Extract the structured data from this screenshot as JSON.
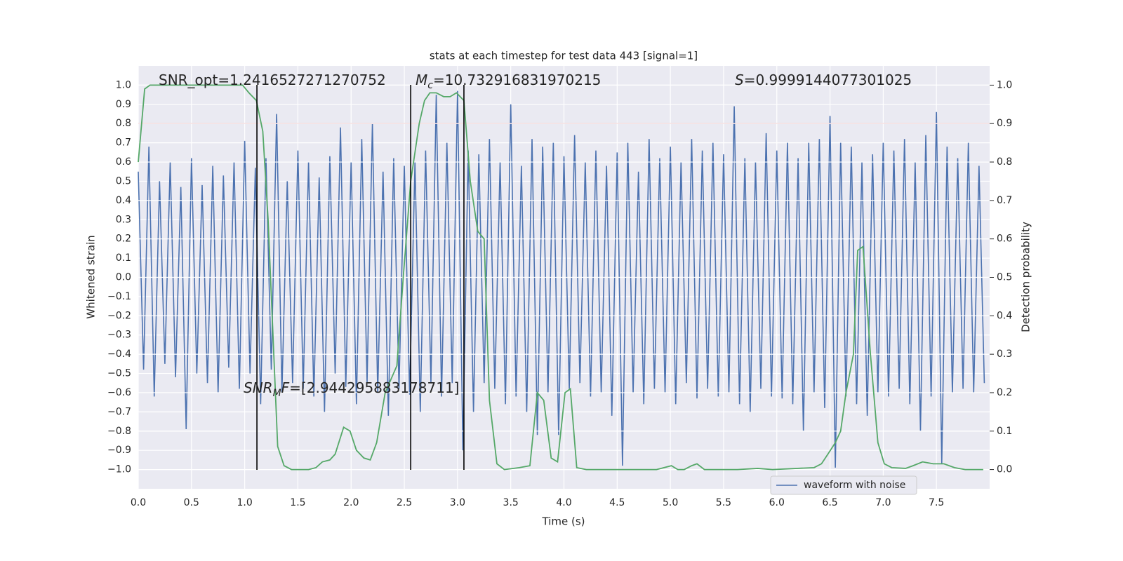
{
  "chart_data": {
    "type": "line",
    "title": "stats at each timestep for test data 443 [signal=1]",
    "x_label": "Time (s)",
    "y_label": "Whitened strain",
    "y2_label": "Detection probability",
    "xlim": [
      0,
      8
    ],
    "ylim": [
      -1.1,
      1.1
    ],
    "y2lim": [
      -0.05,
      1.05
    ],
    "grid": true,
    "legend": "lower right",
    "xticks": [
      {
        "value": 0,
        "label": "0.0"
      },
      {
        "value": 0.5,
        "label": "0.5"
      },
      {
        "value": 1,
        "label": "1.0"
      },
      {
        "value": 1.5,
        "label": "1.5"
      },
      {
        "value": 2,
        "label": "2.0"
      },
      {
        "value": 2.5,
        "label": "2.5"
      },
      {
        "value": 3,
        "label": "3.0"
      },
      {
        "value": 3.5,
        "label": "3.5"
      },
      {
        "value": 4,
        "label": "4.0"
      },
      {
        "value": 4.5,
        "label": "4.5"
      },
      {
        "value": 5,
        "label": "5.0"
      },
      {
        "value": 5.5,
        "label": "5.5"
      },
      {
        "value": 6,
        "label": "6.0"
      },
      {
        "value": 6.5,
        "label": "6.5"
      },
      {
        "value": 7,
        "label": "7.0"
      },
      {
        "value": 7.5,
        "label": "7.5"
      }
    ],
    "yticks": [
      {
        "value": -1,
        "label": "−1.0"
      },
      {
        "value": -0.9,
        "label": "−0.9"
      },
      {
        "value": -0.8,
        "label": "−0.8"
      },
      {
        "value": -0.7,
        "label": "−0.7"
      },
      {
        "value": -0.6,
        "label": "−0.6"
      },
      {
        "value": -0.5,
        "label": "−0.5"
      },
      {
        "value": -0.4,
        "label": "−0.4"
      },
      {
        "value": -0.3,
        "label": "−0.3"
      },
      {
        "value": -0.2,
        "label": "−0.2"
      },
      {
        "value": -0.1,
        "label": "−0.1"
      },
      {
        "value": 0,
        "label": "0.0"
      },
      {
        "value": 0.1,
        "label": "0.1"
      },
      {
        "value": 0.2,
        "label": "0.2"
      },
      {
        "value": 0.3,
        "label": "0.3"
      },
      {
        "value": 0.4,
        "label": "0.4"
      },
      {
        "value": 0.5,
        "label": "0.5"
      },
      {
        "value": 0.6,
        "label": "0.6"
      },
      {
        "value": 0.7,
        "label": "0.7"
      },
      {
        "value": 0.8,
        "label": "0.8"
      },
      {
        "value": 0.9,
        "label": "0.9"
      },
      {
        "value": 1,
        "label": "1.0"
      }
    ],
    "y2ticks": [
      {
        "value": 0,
        "label": "0.0"
      },
      {
        "value": 0.1,
        "label": "0.1"
      },
      {
        "value": 0.2,
        "label": "0.2"
      },
      {
        "value": 0.3,
        "label": "0.3"
      },
      {
        "value": 0.4,
        "label": "0.4"
      },
      {
        "value": 0.5,
        "label": "0.5"
      },
      {
        "value": 0.6,
        "label": "0.6"
      },
      {
        "value": 0.7,
        "label": "0.7"
      },
      {
        "value": 0.8,
        "label": "0.8"
      },
      {
        "value": 0.9,
        "label": "0.9"
      },
      {
        "value": 1,
        "label": "1.0"
      }
    ],
    "series": [
      {
        "name": "waveform with noise",
        "color": "#4c72b0",
        "x": [
          0,
          0.05,
          0.1,
          0.15,
          0.2,
          0.25,
          0.3,
          0.35,
          0.4,
          0.45,
          0.5,
          0.55,
          0.6,
          0.65,
          0.7,
          0.75,
          0.8,
          0.85,
          0.9,
          0.95,
          1,
          1.05,
          1.1,
          1.15,
          1.2,
          1.25,
          1.3,
          1.35,
          1.4,
          1.45,
          1.5,
          1.55,
          1.6,
          1.65,
          1.7,
          1.75,
          1.8,
          1.85,
          1.9,
          1.95,
          2,
          2.05,
          2.1,
          2.15,
          2.2,
          2.25,
          2.3,
          2.35,
          2.4,
          2.45,
          2.5,
          2.55,
          2.6,
          2.65,
          2.7,
          2.75,
          2.8,
          2.85,
          2.9,
          2.95,
          3,
          3.05,
          3.1,
          3.15,
          3.2,
          3.25,
          3.3,
          3.35,
          3.4,
          3.45,
          3.5,
          3.55,
          3.6,
          3.65,
          3.7,
          3.75,
          3.8,
          3.85,
          3.9,
          3.95,
          4,
          4.05,
          4.1,
          4.15,
          4.2,
          4.25,
          4.3,
          4.35,
          4.4,
          4.45,
          4.5,
          4.55,
          4.6,
          4.65,
          4.7,
          4.75,
          4.8,
          4.85,
          4.9,
          4.95,
          5,
          5.05,
          5.1,
          5.15,
          5.2,
          5.25,
          5.3,
          5.35,
          5.4,
          5.45,
          5.5,
          5.55,
          5.6,
          5.65,
          5.7,
          5.75,
          5.8,
          5.85,
          5.9,
          5.95,
          6,
          6.05,
          6.1,
          6.15,
          6.2,
          6.25,
          6.3,
          6.35,
          6.4,
          6.45,
          6.5,
          6.55,
          6.6,
          6.65,
          6.7,
          6.75,
          6.8,
          6.85,
          6.9,
          6.95,
          7,
          7.05,
          7.1,
          7.15,
          7.2,
          7.25,
          7.3,
          7.35,
          7.4,
          7.45,
          7.5,
          7.55,
          7.6,
          7.65,
          7.7,
          7.75,
          7.8,
          7.85,
          7.9,
          7.95
        ],
        "values": [
          0.55,
          -0.48,
          0.68,
          -0.62,
          0.5,
          -0.45,
          0.6,
          -0.52,
          0.47,
          -0.79,
          0.62,
          -0.5,
          0.48,
          -0.55,
          0.58,
          -0.6,
          0.53,
          -0.47,
          0.6,
          -0.58,
          0.71,
          -0.5,
          0.57,
          -0.66,
          0.62,
          -0.48,
          0.85,
          -0.6,
          0.5,
          -0.55,
          0.66,
          -0.58,
          0.6,
          -0.62,
          0.52,
          -0.7,
          0.63,
          -0.5,
          0.78,
          -0.57,
          0.6,
          -0.66,
          0.72,
          -0.55,
          0.8,
          -0.6,
          0.55,
          -0.72,
          0.62,
          -0.58,
          0.58,
          -0.61,
          0.6,
          -0.7,
          0.66,
          -0.55,
          0.95,
          -0.62,
          0.7,
          -0.55,
          0.97,
          -0.9,
          0.66,
          -0.7,
          0.64,
          -0.55,
          0.72,
          -0.58,
          0.6,
          -0.66,
          0.9,
          -0.62,
          0.58,
          -0.7,
          0.72,
          -0.82,
          0.68,
          -0.6,
          0.7,
          -0.82,
          0.63,
          -0.58,
          0.74,
          -0.55,
          0.6,
          -0.62,
          0.66,
          -0.6,
          0.58,
          -0.72,
          0.65,
          -0.98,
          0.7,
          -0.6,
          0.55,
          -0.66,
          0.72,
          -0.58,
          0.62,
          -0.6,
          0.68,
          -0.66,
          0.6,
          -0.55,
          0.72,
          -0.63,
          0.66,
          -0.58,
          0.7,
          -0.62,
          0.64,
          -0.6,
          0.89,
          -0.66,
          0.62,
          -0.7,
          0.6,
          -0.58,
          0.75,
          -0.62,
          0.66,
          -0.63,
          0.7,
          -0.66,
          0.62,
          -0.8,
          0.7,
          -0.6,
          0.72,
          -0.68,
          0.84,
          -0.99,
          0.7,
          -0.62,
          0.68,
          -0.66,
          0.6,
          -0.72,
          0.64,
          -0.6,
          0.7,
          -0.62,
          0.66,
          -0.58,
          0.72,
          -0.66,
          0.6,
          -0.8,
          0.74,
          -0.62,
          0.86,
          -0.97,
          0.68,
          -0.6,
          0.62,
          -0.58,
          0.7,
          -0.6,
          0.58,
          -0.55
        ]
      },
      {
        "color": "#55a868",
        "axis": "y2",
        "x": [
          0,
          0.06,
          0.11,
          0.98,
          1.04,
          1.11,
          1.17,
          1.22,
          1.31,
          1.37,
          1.44,
          1.6,
          1.67,
          1.73,
          1.8,
          1.85,
          1.93,
          1.99,
          2.05,
          2.12,
          2.18,
          2.24,
          2.32,
          2.43,
          2.49,
          2.56,
          2.64,
          2.69,
          2.74,
          2.8,
          2.87,
          2.93,
          2.99,
          3.06,
          3.12,
          3.19,
          3.25,
          3.3,
          3.37,
          3.44,
          3.58,
          3.68,
          3.75,
          3.81,
          3.88,
          3.94,
          4.01,
          4.06,
          4.12,
          4.21,
          4.51,
          4.87,
          5.01,
          5.07,
          5.13,
          5.2,
          5.25,
          5.32,
          5.63,
          5.82,
          5.96,
          6.35,
          6.42,
          6.48,
          6.55,
          6.6,
          6.65,
          6.72,
          6.76,
          6.81,
          6.88,
          6.95,
          7.01,
          7.08,
          7.21,
          7.28,
          7.37,
          7.47,
          7.57,
          7.67,
          7.77,
          7.94
        ],
        "values": [
          0.8,
          0.99,
          1.0,
          1.0,
          0.98,
          0.96,
          0.88,
          0.65,
          0.06,
          0.01,
          0.0,
          0.0,
          0.005,
          0.02,
          0.025,
          0.04,
          0.11,
          0.1,
          0.05,
          0.03,
          0.025,
          0.07,
          0.2,
          0.27,
          0.5,
          0.75,
          0.9,
          0.96,
          0.98,
          0.98,
          0.97,
          0.97,
          0.98,
          0.96,
          0.75,
          0.62,
          0.6,
          0.18,
          0.015,
          0.0,
          0.005,
          0.01,
          0.2,
          0.18,
          0.03,
          0.02,
          0.2,
          0.21,
          0.005,
          0.0,
          0.0,
          0.0,
          0.01,
          0.0,
          0.0,
          0.01,
          0.015,
          0.0,
          0.0,
          0.003,
          0.0,
          0.005,
          0.015,
          0.04,
          0.07,
          0.1,
          0.2,
          0.3,
          0.57,
          0.58,
          0.3,
          0.07,
          0.015,
          0.005,
          0.003,
          0.01,
          0.02,
          0.015,
          0.015,
          0.005,
          0.0,
          0.0
        ]
      }
    ],
    "threshold": {
      "value": 0.9,
      "axis": "y2",
      "color": "#c44e52"
    },
    "vlines": [
      1.115,
      2.56,
      3.06
    ],
    "annotations": [
      {
        "text": "SNR_opt=1.2416527271270752"
      },
      {
        "symbol": "M",
        "subscript": "c",
        "text": "=10.732916831970215"
      },
      {
        "symbol": "S",
        "text": "=0.9999144077301025"
      },
      {
        "symbol": "SNR",
        "subscript": "M",
        "symbol2": "F",
        "text": "=[2.944295883178711]"
      }
    ]
  }
}
